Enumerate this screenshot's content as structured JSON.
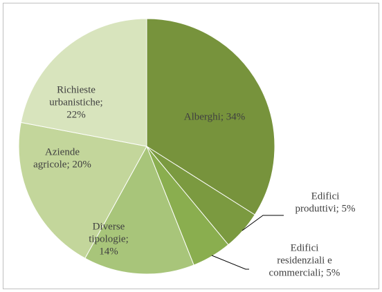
{
  "chart_data": {
    "type": "pie",
    "values": [
      34,
      5,
      5,
      14,
      20,
      22
    ],
    "value_labels": [
      [
        "Alberghi; 34%"
      ],
      [
        "Edifici",
        "produttivi; 5%"
      ],
      [
        "Edifici",
        "residenziali e",
        "commerciali; 5%"
      ],
      [
        "Diverse",
        "tipologie;",
        "14%"
      ],
      [
        "Aziende",
        "agricole; 20%"
      ],
      [
        "Richieste",
        "urbanistiche;",
        "22%"
      ]
    ],
    "colors": [
      "#77933c",
      "#7b9a40",
      "#8aae4f",
      "#a8c57a",
      "#c3d69b",
      "#d8e4bd"
    ]
  }
}
